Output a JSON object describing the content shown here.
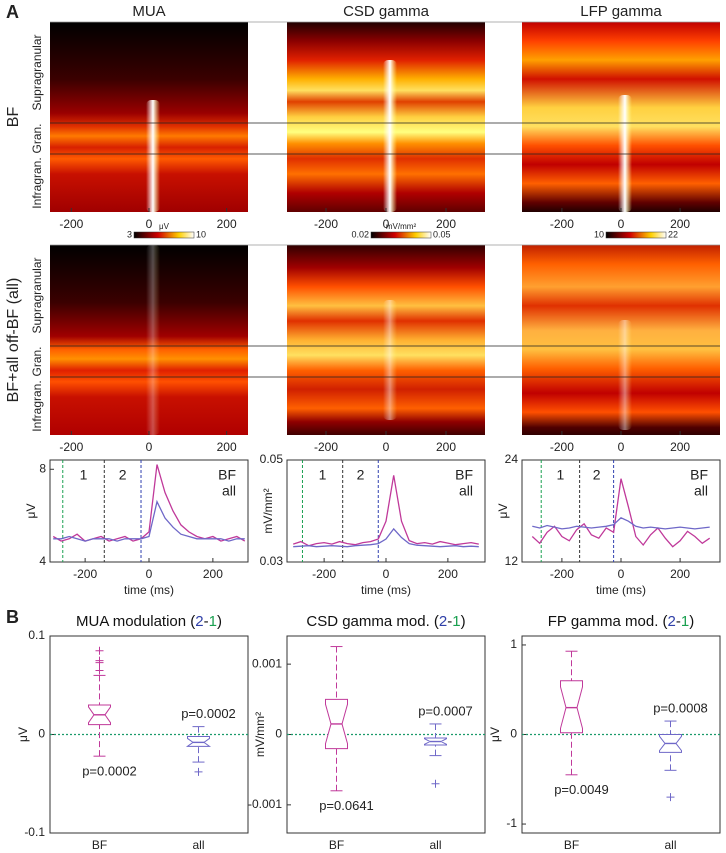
{
  "figure": {
    "panels": [
      "A",
      "B"
    ],
    "rows": [
      "BF",
      "BF+all off-BF (all)"
    ],
    "layers": [
      "Supragranular",
      "Gran.",
      "Infragran."
    ]
  },
  "chart_data": [
    {
      "type": "heatmap",
      "title": "MUA",
      "xlim": [
        -255,
        255
      ],
      "xticks": [
        -200,
        0,
        200
      ],
      "colorbar": {
        "min": 3,
        "max": 10,
        "unit": "μV"
      }
    },
    {
      "type": "heatmap",
      "title": "CSD gamma",
      "xlim": [
        -330,
        330
      ],
      "xticks": [
        -200,
        0,
        200
      ],
      "colorbar": {
        "min": 0.02,
        "max": 0.05,
        "unit": "mV/mm²"
      }
    },
    {
      "type": "heatmap",
      "title": "LFP gamma",
      "xlim": [
        -335,
        335
      ],
      "xticks": [
        -200,
        0,
        200
      ],
      "colorbar": {
        "min": 10,
        "max": 22
      }
    },
    {
      "type": "line",
      "ylabel": "μV",
      "xlabel": "time (ms)",
      "xlim": [
        -310,
        310
      ],
      "xticks": [
        -200,
        0,
        200
      ],
      "ylim": [
        4,
        8.4
      ],
      "yticks": [
        4,
        8
      ],
      "legend": "upper right",
      "windows": {
        "bounds": [
          -270,
          -140,
          -25
        ],
        "labels": [
          "1",
          "2"
        ],
        "colors": [
          "#1aa050",
          "#333333",
          "#3040b0"
        ]
      },
      "x": [
        -300,
        -275,
        -250,
        -225,
        -200,
        -175,
        -150,
        -125,
        -100,
        -75,
        -50,
        -25,
        0,
        25,
        50,
        75,
        100,
        125,
        150,
        175,
        200,
        225,
        250,
        275,
        300
      ],
      "series": [
        {
          "name": "BF",
          "color": "#c0399a",
          "values": [
            5.1,
            4.9,
            5.0,
            5.2,
            4.9,
            5.0,
            5.1,
            4.9,
            5.0,
            5.1,
            4.9,
            5.0,
            5.3,
            8.2,
            7.0,
            6.2,
            5.6,
            5.3,
            5.1,
            5.0,
            5.1,
            4.9,
            5.0,
            5.1,
            4.9
          ]
        },
        {
          "name": "all",
          "color": "#6f68c8",
          "values": [
            5.0,
            5.0,
            5.1,
            5.0,
            4.9,
            5.0,
            5.0,
            5.0,
            4.9,
            5.0,
            5.0,
            5.0,
            5.1,
            6.6,
            5.9,
            5.5,
            5.2,
            5.1,
            5.0,
            5.0,
            5.0,
            5.0,
            4.9,
            5.0,
            5.0
          ]
        }
      ]
    },
    {
      "type": "line",
      "ylabel": "mV/mm²",
      "xlabel": "time (ms)",
      "xlim": [
        -320,
        320
      ],
      "xticks": [
        -200,
        0,
        200
      ],
      "ylim": [
        0.03,
        0.05
      ],
      "yticks": [
        0.03,
        0.05
      ],
      "legend": "upper right",
      "windows": {
        "bounds": [
          -270,
          -140,
          -25
        ],
        "labels": [
          "1",
          "2"
        ],
        "colors": [
          "#1aa050",
          "#333333",
          "#3040b0"
        ]
      },
      "x": [
        -300,
        -275,
        -250,
        -225,
        -200,
        -175,
        -150,
        -125,
        -100,
        -75,
        -50,
        -25,
        0,
        25,
        50,
        75,
        100,
        125,
        150,
        175,
        200,
        225,
        250,
        275,
        300
      ],
      "series": [
        {
          "name": "BF",
          "color": "#c0399a",
          "values": [
            0.0335,
            0.034,
            0.0332,
            0.0336,
            0.0338,
            0.0335,
            0.034,
            0.0336,
            0.0334,
            0.0338,
            0.034,
            0.0345,
            0.038,
            0.047,
            0.038,
            0.0342,
            0.0336,
            0.0338,
            0.0335,
            0.034,
            0.0337,
            0.0334,
            0.0336,
            0.0338,
            0.0335
          ]
        },
        {
          "name": "all",
          "color": "#6f68c8",
          "values": [
            0.033,
            0.0331,
            0.0332,
            0.033,
            0.0331,
            0.0332,
            0.0331,
            0.033,
            0.0332,
            0.0333,
            0.0334,
            0.0336,
            0.0345,
            0.0365,
            0.0348,
            0.0336,
            0.0333,
            0.0332,
            0.0331,
            0.033,
            0.0331,
            0.0332,
            0.033,
            0.0331,
            0.033
          ]
        }
      ]
    },
    {
      "type": "line",
      "ylabel": "μV",
      "xlabel": "time (ms)",
      "xlim": [
        -335,
        335
      ],
      "xticks": [
        -200,
        0,
        200
      ],
      "ylim": [
        12,
        24
      ],
      "yticks": [
        12,
        24
      ],
      "legend": "upper right",
      "windows": {
        "bounds": [
          -270,
          -140,
          -25
        ],
        "labels": [
          "1",
          "2"
        ],
        "colors": [
          "#1aa050",
          "#333333",
          "#3040b0"
        ]
      },
      "x": [
        -300,
        -275,
        -250,
        -225,
        -200,
        -175,
        -150,
        -125,
        -100,
        -75,
        -50,
        -25,
        0,
        25,
        50,
        75,
        100,
        125,
        150,
        175,
        200,
        225,
        250,
        275,
        300
      ],
      "series": [
        {
          "name": "BF",
          "color": "#c0399a",
          "values": [
            15.0,
            14.2,
            15.5,
            16.2,
            15.0,
            14.5,
            15.8,
            16.5,
            15.2,
            14.8,
            16.0,
            15.5,
            21.8,
            18.5,
            15.0,
            14.0,
            15.2,
            16.0,
            14.8,
            13.8,
            14.5,
            15.6,
            15.0,
            14.2,
            14.8
          ]
        },
        {
          "name": "all",
          "color": "#6f68c8",
          "values": [
            16.2,
            16.0,
            16.3,
            16.1,
            15.9,
            16.0,
            16.2,
            16.1,
            16.0,
            16.1,
            16.2,
            16.4,
            17.2,
            16.8,
            16.2,
            16.0,
            16.1,
            16.0,
            15.9,
            16.0,
            16.1,
            16.0,
            15.9,
            16.0,
            16.1
          ]
        }
      ]
    },
    {
      "type": "box",
      "title_parts": [
        {
          "text": "MUA modulation (",
          "color": "#111111"
        },
        {
          "text": "2",
          "color": "#2f3fa8"
        },
        {
          "text": "-",
          "color": "#111111"
        },
        {
          "text": "1",
          "color": "#1aa050"
        },
        {
          "text": ")",
          "color": "#111111"
        }
      ],
      "ylabel": "μV",
      "ylim": [
        -0.1,
        0.1
      ],
      "yticks": [
        -0.1,
        0,
        0.1
      ],
      "zero_line_color": "#1a9a6a",
      "categories": [
        "BF",
        "all"
      ],
      "series": [
        {
          "name": "BF",
          "color": "#c0399a",
          "whisker_low": -0.022,
          "q1": 0.01,
          "median": 0.02,
          "q3": 0.03,
          "whisker_high": 0.06,
          "outliers": [
            0.085,
            0.075,
            0.073,
            0.065
          ],
          "p_label": "p=0.0002",
          "p_label_position": "below"
        },
        {
          "name": "all",
          "color": "#6f68c8",
          "whisker_low": -0.028,
          "q1": -0.012,
          "median": -0.008,
          "q3": -0.002,
          "whisker_high": 0.008,
          "outliers": [
            -0.038
          ],
          "p_label": "p=0.0002",
          "p_label_position": "above"
        }
      ]
    },
    {
      "type": "box",
      "title_parts": [
        {
          "text": "CSD gamma mod. (",
          "color": "#111111"
        },
        {
          "text": "2",
          "color": "#2f3fa8"
        },
        {
          "text": "-",
          "color": "#111111"
        },
        {
          "text": "1",
          "color": "#1aa050"
        },
        {
          "text": ")",
          "color": "#111111"
        }
      ],
      "ylabel": "mV/mm²",
      "ylim": [
        -0.0014,
        0.0014
      ],
      "yticks": [
        -0.001,
        0,
        0.001
      ],
      "zero_line_color": "#1a9a6a",
      "categories": [
        "BF",
        "all"
      ],
      "series": [
        {
          "name": "BF",
          "color": "#c0399a",
          "whisker_low": -0.0008,
          "q1": -0.0002,
          "median": 0.00015,
          "q3": 0.0005,
          "whisker_high": 0.00125,
          "outliers": [],
          "p_label": "p=0.0641",
          "p_label_position": "below"
        },
        {
          "name": "all",
          "color": "#6f68c8",
          "whisker_low": -0.0003,
          "q1": -0.00015,
          "median": -0.0001,
          "q3": -5e-05,
          "whisker_high": 0.00015,
          "outliers": [
            -0.0007
          ],
          "p_label": "p=0.0007",
          "p_label_position": "above"
        }
      ]
    },
    {
      "type": "box",
      "title_parts": [
        {
          "text": "FP gamma mod. (",
          "color": "#111111"
        },
        {
          "text": "2",
          "color": "#2f3fa8"
        },
        {
          "text": "-",
          "color": "#111111"
        },
        {
          "text": "1",
          "color": "#1aa050"
        },
        {
          "text": ")",
          "color": "#111111"
        }
      ],
      "ylabel": "μV",
      "ylim": [
        -1.1,
        1.1
      ],
      "yticks": [
        -1,
        0,
        1
      ],
      "zero_line_color": "#1a9a6a",
      "categories": [
        "BF",
        "all"
      ],
      "series": [
        {
          "name": "BF",
          "color": "#c0399a",
          "whisker_low": -0.45,
          "q1": 0.02,
          "median": 0.3,
          "q3": 0.6,
          "whisker_high": 0.93,
          "outliers": [],
          "p_label": "p=0.0049",
          "p_label_position": "below"
        },
        {
          "name": "all",
          "color": "#6f68c8",
          "whisker_low": -0.4,
          "q1": -0.2,
          "median": -0.1,
          "q3": 0,
          "whisker_high": 0.15,
          "outliers": [
            -0.7
          ],
          "p_label": "p=0.0008",
          "p_label_position": "above"
        }
      ]
    }
  ]
}
